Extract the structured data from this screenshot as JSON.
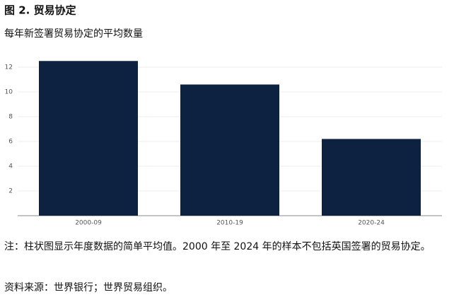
{
  "chart_data": {
    "type": "bar",
    "title": "图 2. 贸易协定",
    "subtitle": "每年新签署贸易协定的平均数量",
    "categories": [
      "2000-09",
      "2010-19",
      "2020-24"
    ],
    "values": [
      12.5,
      10.6,
      6.2
    ],
    "color": "#0d2240",
    "ylim": [
      0,
      13
    ],
    "yticks": [
      2,
      4,
      6,
      8,
      10,
      12
    ],
    "grid": true,
    "note": "注：柱状图显示年度数据的简单平均值。2000 年至 2024 年的样本不包括英国签署的贸易协定。",
    "source": "资料来源：世界银行；世界贸易组织。"
  }
}
